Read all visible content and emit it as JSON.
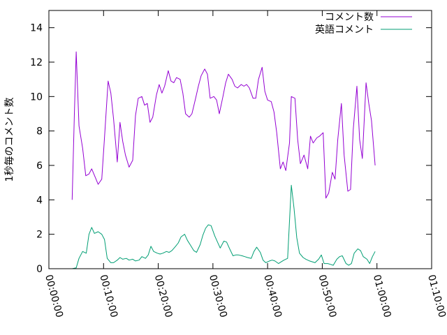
{
  "chart_data": {
    "type": "line",
    "title": "",
    "xlabel": "",
    "ylabel": "1秒毎のコメント数",
    "xlim": [
      "00:00:00",
      "01:10:00"
    ],
    "ylim": [
      0,
      15
    ],
    "x_ticks": [
      "00:00:00",
      "00:10:00",
      "00:20:00",
      "00:30:00",
      "00:40:00",
      "00:50:00",
      "01:00:00",
      "01:10:00"
    ],
    "y_ticks": [
      0,
      2,
      4,
      6,
      8,
      10,
      12,
      14
    ],
    "grid": false,
    "legend_position": "top-right",
    "series": [
      {
        "name": "コメント数",
        "color": "#9400d3",
        "points": [
          [
            "00:04:15",
            4.0
          ],
          [
            "00:04:40",
            9.0
          ],
          [
            "00:05:00",
            12.6
          ],
          [
            "00:05:30",
            8.3
          ],
          [
            "00:06:10",
            7.0
          ],
          [
            "00:06:45",
            5.4
          ],
          [
            "00:07:20",
            5.5
          ],
          [
            "00:07:50",
            5.8
          ],
          [
            "00:08:30",
            5.3
          ],
          [
            "00:09:00",
            4.9
          ],
          [
            "00:09:40",
            5.2
          ],
          [
            "00:10:10",
            7.6
          ],
          [
            "00:10:50",
            10.9
          ],
          [
            "00:11:20",
            10.2
          ],
          [
            "00:11:50",
            8.7
          ],
          [
            "00:12:30",
            6.2
          ],
          [
            "00:13:00",
            8.5
          ],
          [
            "00:13:30",
            7.4
          ],
          [
            "00:14:00",
            6.6
          ],
          [
            "00:14:40",
            5.9
          ],
          [
            "00:15:20",
            6.3
          ],
          [
            "00:15:50",
            8.9
          ],
          [
            "00:16:20",
            9.9
          ],
          [
            "00:17:00",
            10.0
          ],
          [
            "00:17:30",
            9.5
          ],
          [
            "00:18:00",
            9.6
          ],
          [
            "00:18:30",
            8.5
          ],
          [
            "00:19:00",
            8.8
          ],
          [
            "00:19:40",
            10.1
          ],
          [
            "00:20:10",
            10.7
          ],
          [
            "00:20:40",
            10.2
          ],
          [
            "00:21:10",
            10.6
          ],
          [
            "00:21:50",
            11.5
          ],
          [
            "00:22:20",
            10.9
          ],
          [
            "00:22:50",
            10.8
          ],
          [
            "00:23:20",
            11.1
          ],
          [
            "00:24:00",
            11.0
          ],
          [
            "00:24:30",
            10.2
          ],
          [
            "00:25:00",
            9.0
          ],
          [
            "00:25:40",
            8.8
          ],
          [
            "00:26:10",
            9.0
          ],
          [
            "00:26:50",
            9.9
          ],
          [
            "00:27:20",
            10.6
          ],
          [
            "00:27:50",
            11.2
          ],
          [
            "00:28:30",
            11.6
          ],
          [
            "00:29:00",
            11.3
          ],
          [
            "00:29:30",
            9.9
          ],
          [
            "00:30:10",
            10.0
          ],
          [
            "00:30:40",
            9.8
          ],
          [
            "00:31:10",
            9.0
          ],
          [
            "00:31:50",
            10.0
          ],
          [
            "00:32:20",
            10.8
          ],
          [
            "00:32:50",
            11.3
          ],
          [
            "00:33:30",
            11.0
          ],
          [
            "00:34:00",
            10.6
          ],
          [
            "00:34:30",
            10.5
          ],
          [
            "00:35:10",
            10.7
          ],
          [
            "00:35:40",
            10.6
          ],
          [
            "00:36:10",
            10.7
          ],
          [
            "00:36:40",
            10.5
          ],
          [
            "00:37:20",
            9.9
          ],
          [
            "00:37:50",
            9.9
          ],
          [
            "00:38:20",
            11.0
          ],
          [
            "00:39:00",
            11.7
          ],
          [
            "00:39:30",
            10.3
          ],
          [
            "00:40:00",
            9.8
          ],
          [
            "00:40:40",
            9.7
          ],
          [
            "00:41:10",
            9.1
          ],
          [
            "00:41:40",
            7.9
          ],
          [
            "00:42:20",
            5.8
          ],
          [
            "00:42:50",
            6.2
          ],
          [
            "00:43:20",
            5.7
          ],
          [
            "00:44:00",
            7.3
          ],
          [
            "00:44:20",
            10.0
          ],
          [
            "00:45:00",
            9.9
          ],
          [
            "00:45:30",
            7.5
          ],
          [
            "00:46:00",
            6.1
          ],
          [
            "00:46:40",
            6.6
          ],
          [
            "00:47:20",
            5.8
          ],
          [
            "00:47:50",
            7.7
          ],
          [
            "00:48:20",
            7.3
          ],
          [
            "00:49:00",
            7.6
          ],
          [
            "00:49:30",
            7.7
          ],
          [
            "00:50:10",
            7.9
          ],
          [
            "00:50:40",
            4.1
          ],
          [
            "00:51:10",
            4.4
          ],
          [
            "00:51:50",
            5.6
          ],
          [
            "00:52:20",
            5.2
          ],
          [
            "00:52:50",
            7.5
          ],
          [
            "00:53:30",
            9.6
          ],
          [
            "00:54:00",
            6.6
          ],
          [
            "00:54:40",
            4.5
          ],
          [
            "00:55:10",
            4.6
          ],
          [
            "00:55:40",
            8.1
          ],
          [
            "00:56:20",
            10.6
          ],
          [
            "00:56:50",
            7.5
          ],
          [
            "00:57:20",
            6.4
          ],
          [
            "00:58:00",
            10.8
          ],
          [
            "00:58:30",
            9.6
          ],
          [
            "00:59:00",
            8.6
          ],
          [
            "00:59:40",
            6.0
          ]
        ]
      },
      {
        "name": "英語コメント",
        "color": "#009e73",
        "points": [
          [
            "00:04:15",
            0.0
          ],
          [
            "00:05:00",
            0.05
          ],
          [
            "00:05:30",
            0.6
          ],
          [
            "00:06:10",
            1.0
          ],
          [
            "00:06:50",
            0.9
          ],
          [
            "00:07:20",
            2.0
          ],
          [
            "00:07:50",
            2.4
          ],
          [
            "00:08:20",
            2.05
          ],
          [
            "00:09:00",
            2.15
          ],
          [
            "00:09:40",
            2.0
          ],
          [
            "00:10:10",
            1.7
          ],
          [
            "00:10:40",
            0.6
          ],
          [
            "00:11:20",
            0.35
          ],
          [
            "00:11:50",
            0.35
          ],
          [
            "00:12:30",
            0.5
          ],
          [
            "00:13:00",
            0.65
          ],
          [
            "00:13:30",
            0.55
          ],
          [
            "00:14:10",
            0.6
          ],
          [
            "00:14:40",
            0.5
          ],
          [
            "00:15:20",
            0.55
          ],
          [
            "00:15:50",
            0.45
          ],
          [
            "00:16:30",
            0.5
          ],
          [
            "00:17:00",
            0.7
          ],
          [
            "00:17:40",
            0.6
          ],
          [
            "00:18:10",
            0.8
          ],
          [
            "00:18:40",
            1.3
          ],
          [
            "00:19:10",
            1.0
          ],
          [
            "00:19:50",
            0.9
          ],
          [
            "00:20:20",
            0.85
          ],
          [
            "00:20:50",
            0.9
          ],
          [
            "00:21:30",
            1.0
          ],
          [
            "00:22:00",
            0.95
          ],
          [
            "00:22:30",
            1.05
          ],
          [
            "00:23:10",
            1.3
          ],
          [
            "00:23:40",
            1.5
          ],
          [
            "00:24:10",
            1.85
          ],
          [
            "00:24:50",
            2.0
          ],
          [
            "00:25:20",
            1.65
          ],
          [
            "00:25:50",
            1.4
          ],
          [
            "00:26:30",
            1.05
          ],
          [
            "00:27:00",
            0.95
          ],
          [
            "00:27:40",
            1.4
          ],
          [
            "00:28:10",
            1.95
          ],
          [
            "00:28:40",
            2.35
          ],
          [
            "00:29:10",
            2.55
          ],
          [
            "00:29:40",
            2.5
          ],
          [
            "00:30:20",
            1.9
          ],
          [
            "00:30:50",
            1.55
          ],
          [
            "00:31:20",
            1.2
          ],
          [
            "00:32:00",
            1.6
          ],
          [
            "00:32:30",
            1.55
          ],
          [
            "00:33:00",
            1.2
          ],
          [
            "00:33:40",
            0.75
          ],
          [
            "00:34:10",
            0.8
          ],
          [
            "00:34:40",
            0.8
          ],
          [
            "00:35:20",
            0.75
          ],
          [
            "00:35:50",
            0.7
          ],
          [
            "00:36:20",
            0.65
          ],
          [
            "00:37:00",
            0.6
          ],
          [
            "00:37:30",
            1.0
          ],
          [
            "00:38:00",
            1.25
          ],
          [
            "00:38:40",
            0.95
          ],
          [
            "00:39:10",
            0.5
          ],
          [
            "00:39:40",
            0.35
          ],
          [
            "00:40:20",
            0.45
          ],
          [
            "00:40:50",
            0.5
          ],
          [
            "00:41:20",
            0.45
          ],
          [
            "00:42:00",
            0.3
          ],
          [
            "00:42:30",
            0.4
          ],
          [
            "00:43:00",
            0.5
          ],
          [
            "00:43:40",
            0.6
          ],
          [
            "00:44:20",
            4.85
          ],
          [
            "00:44:50",
            3.5
          ],
          [
            "00:45:20",
            1.8
          ],
          [
            "00:45:50",
            0.9
          ],
          [
            "00:46:30",
            0.65
          ],
          [
            "00:47:00",
            0.55
          ],
          [
            "00:47:40",
            0.45
          ],
          [
            "00:48:10",
            0.4
          ],
          [
            "00:48:40",
            0.35
          ],
          [
            "00:49:20",
            0.55
          ],
          [
            "00:49:50",
            0.8
          ],
          [
            "00:50:20",
            0.3
          ],
          [
            "00:51:00",
            0.3
          ],
          [
            "00:51:30",
            0.25
          ],
          [
            "00:52:00",
            0.2
          ],
          [
            "00:52:40",
            0.55
          ],
          [
            "00:53:10",
            0.7
          ],
          [
            "00:53:40",
            0.75
          ],
          [
            "00:54:20",
            0.3
          ],
          [
            "00:54:50",
            0.2
          ],
          [
            "00:55:20",
            0.3
          ],
          [
            "00:55:50",
            0.9
          ],
          [
            "00:56:30",
            1.15
          ],
          [
            "00:57:00",
            1.05
          ],
          [
            "00:57:30",
            0.7
          ],
          [
            "00:58:10",
            0.55
          ],
          [
            "00:58:40",
            0.3
          ],
          [
            "00:59:10",
            0.7
          ],
          [
            "00:59:40",
            1.0
          ]
        ]
      }
    ]
  }
}
